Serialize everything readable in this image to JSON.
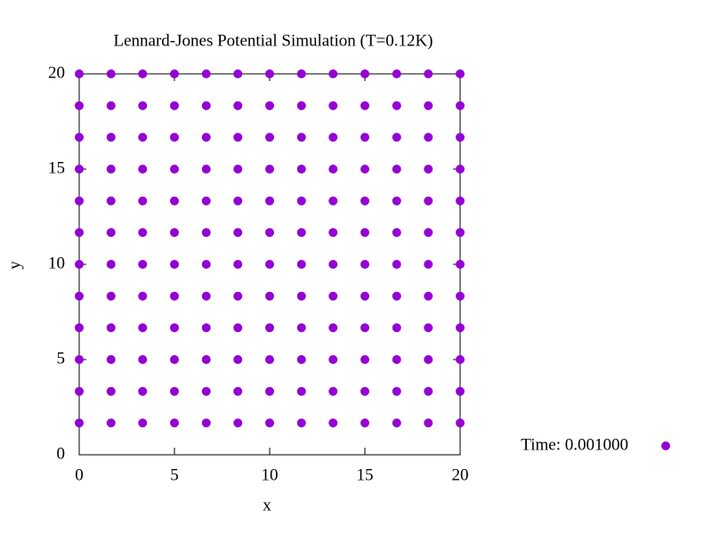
{
  "chart_data": {
    "type": "scatter",
    "title": "Lennard-Jones Potential Simulation (T=0.12K)",
    "x_label": "x",
    "y_label": "y",
    "xlim": [
      0,
      20
    ],
    "ylim": [
      0,
      20
    ],
    "xticks": [
      0,
      5,
      10,
      15,
      20
    ],
    "yticks": [
      0,
      5,
      10,
      15,
      20
    ],
    "grid": false,
    "legend": "right",
    "x": [
      0,
      1.67,
      3.33,
      5,
      6.67,
      8.33,
      10,
      11.67,
      13.33,
      15,
      16.67,
      18.33,
      20,
      0,
      1.67,
      3.33,
      5,
      6.67,
      8.33,
      10,
      11.67,
      13.33,
      15,
      16.67,
      18.33,
      20,
      0,
      1.67,
      3.33,
      5,
      6.67,
      8.33,
      10,
      11.67,
      13.33,
      15,
      16.67,
      18.33,
      20,
      0,
      1.67,
      3.33,
      5,
      6.67,
      8.33,
      10,
      11.67,
      13.33,
      15,
      16.67,
      18.33,
      20,
      0,
      1.67,
      3.33,
      5,
      6.67,
      8.33,
      10,
      11.67,
      13.33,
      15,
      16.67,
      18.33,
      20,
      0,
      1.67,
      3.33,
      5,
      6.67,
      8.33,
      10,
      11.67,
      13.33,
      15,
      16.67,
      18.33,
      20,
      0,
      1.67,
      3.33,
      5,
      6.67,
      8.33,
      10,
      11.67,
      13.33,
      15,
      16.67,
      18.33,
      20,
      0,
      1.67,
      3.33,
      5,
      6.67,
      8.33,
      10,
      11.67,
      13.33,
      15,
      16.67,
      18.33,
      20,
      0,
      1.67,
      3.33,
      5,
      6.67,
      8.33,
      10,
      11.67,
      13.33,
      15,
      16.67,
      18.33,
      20,
      0,
      1.67,
      3.33,
      5,
      6.67,
      8.33,
      10,
      11.67,
      13.33,
      15,
      16.67,
      18.33,
      20,
      0,
      1.67,
      3.33,
      5,
      6.67,
      8.33,
      10,
      11.67,
      13.33,
      15,
      16.67,
      18.33,
      20,
      0,
      1.67,
      3.33,
      5,
      6.67,
      8.33,
      10,
      11.67,
      13.33,
      15,
      16.67,
      18.33,
      20
    ],
    "series": [
      {
        "name": "Time: 0.001000",
        "color": "#9400d3",
        "values": [
          1.67,
          1.67,
          1.67,
          1.67,
          1.67,
          1.67,
          1.67,
          1.67,
          1.67,
          1.67,
          1.67,
          1.67,
          1.67,
          3.33,
          3.33,
          3.33,
          3.33,
          3.33,
          3.33,
          3.33,
          3.33,
          3.33,
          3.33,
          3.33,
          3.33,
          3.33,
          5,
          5,
          5,
          5,
          5,
          5,
          5,
          5,
          5,
          5,
          5,
          5,
          5,
          6.67,
          6.67,
          6.67,
          6.67,
          6.67,
          6.67,
          6.67,
          6.67,
          6.67,
          6.67,
          6.67,
          6.67,
          6.67,
          8.33,
          8.33,
          8.33,
          8.33,
          8.33,
          8.33,
          8.33,
          8.33,
          8.33,
          8.33,
          8.33,
          8.33,
          8.33,
          10,
          10,
          10,
          10,
          10,
          10,
          10,
          10,
          10,
          10,
          10,
          10,
          10,
          11.67,
          11.67,
          11.67,
          11.67,
          11.67,
          11.67,
          11.67,
          11.67,
          11.67,
          11.67,
          11.67,
          11.67,
          11.67,
          13.33,
          13.33,
          13.33,
          13.33,
          13.33,
          13.33,
          13.33,
          13.33,
          13.33,
          13.33,
          13.33,
          13.33,
          13.33,
          15,
          15,
          15,
          15,
          15,
          15,
          15,
          15,
          15,
          15,
          15,
          15,
          15,
          16.67,
          16.67,
          16.67,
          16.67,
          16.67,
          16.67,
          16.67,
          16.67,
          16.67,
          16.67,
          16.67,
          16.67,
          16.67,
          18.33,
          18.33,
          18.33,
          18.33,
          18.33,
          18.33,
          18.33,
          18.33,
          18.33,
          18.33,
          18.33,
          18.33,
          18.33,
          20,
          20,
          20,
          20,
          20,
          20,
          20,
          20,
          20,
          20,
          20,
          20,
          20
        ]
      }
    ]
  }
}
